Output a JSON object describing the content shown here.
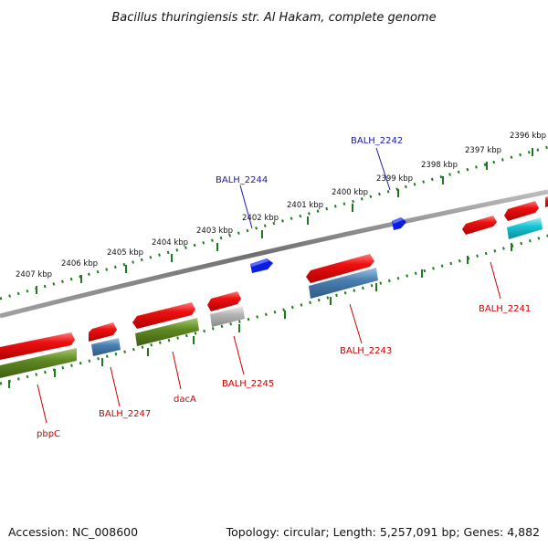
{
  "title": "Bacillus thuringiensis str. Al Hakam, complete genome",
  "footer": {
    "accession": "Accession: NC_008600",
    "topology": "Topology: circular; Length: 5,257,091 bp; Genes: 4,882"
  },
  "colors": {
    "genome_line": "#7a7a7a",
    "tick": "#1f7a1f",
    "red_gene": "#ee1111",
    "blue_gene": "#0a1ee0",
    "steel_gene": "#4a7fb0",
    "olive_gene": "#5f8a22",
    "gray_gene": "#b5b5b5",
    "cyan_gene": "#19c6d6",
    "label_red": "#cc0000",
    "label_blue": "#1a1aa6"
  },
  "kbp_labels": [
    "2407 kbp",
    "2406 kbp",
    "2405 kbp",
    "2404 kbp",
    "2403 kbp",
    "2402 kbp",
    "2401 kbp",
    "2400 kbp",
    "2399 kbp",
    "2398 kbp",
    "2397 kbp",
    "2396 kbp"
  ],
  "gene_labels": [
    {
      "text": "BALH_2244",
      "color": "blue"
    },
    {
      "text": "BALH_2242",
      "color": "blue"
    },
    {
      "text": "BALH_2241",
      "color": "red"
    },
    {
      "text": "BALH_2243",
      "color": "red"
    },
    {
      "text": "BALH_2245",
      "color": "red"
    },
    {
      "text": "dacA",
      "color": "red"
    },
    {
      "text": "BALH_2247",
      "color": "red"
    },
    {
      "text": "pbpC",
      "color": "red"
    }
  ]
}
